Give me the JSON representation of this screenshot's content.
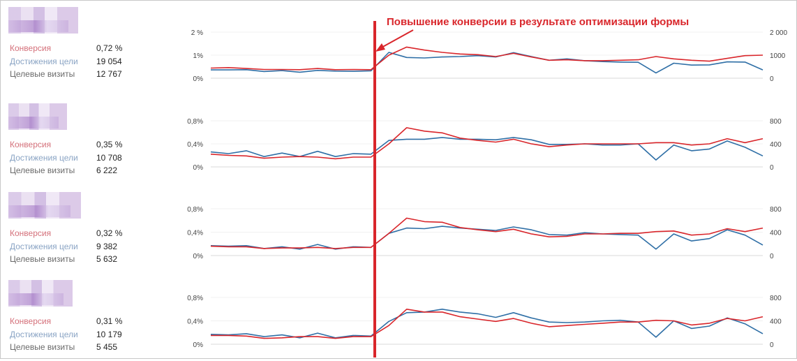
{
  "annotation": {
    "text": "Повышение конверсии в результате оптимизации формы",
    "color": "#d9262b"
  },
  "metric_labels": {
    "conversion": "Конверсия",
    "goals": "Достижения цели",
    "visits": "Целевые визиты"
  },
  "colors": {
    "conversion_line": "#d9262b",
    "goals_line": "#2f6fa6",
    "label_conversion": "#d4707a",
    "label_goals": "#8aa4c4",
    "label_visits": "#6a6a6a"
  },
  "panels": [
    {
      "conversion": "0,72 %",
      "goals": "19 054",
      "visits": "12 767"
    },
    {
      "conversion": "0,35 %",
      "goals": "10 708",
      "visits": "6 222"
    },
    {
      "conversion": "0,32 %",
      "goals": "9 382",
      "visits": "5 632"
    },
    {
      "conversion": "0,31 %",
      "goals": "10 179",
      "visits": "5 455"
    }
  ],
  "chart_data": [
    {
      "type": "line",
      "left_ticks": [
        "0%",
        "1%",
        "2 %"
      ],
      "right_ticks": [
        "0",
        "1000",
        "2 000"
      ],
      "ylim_left": [
        0,
        2
      ],
      "ylim_right": [
        0,
        2000
      ],
      "series": [
        {
          "values": [
            0.44,
            0.46,
            0.42,
            0.38,
            0.38,
            0.37,
            0.42,
            0.37,
            0.38,
            0.37,
            1.0,
            1.35,
            1.22,
            1.12,
            1.05,
            1.02,
            0.94,
            1.08,
            0.92,
            0.78,
            0.8,
            0.76,
            0.76,
            0.78,
            0.8,
            0.94,
            0.84,
            0.78,
            0.74,
            0.86,
            0.98,
            1.0
          ]
        },
        {
          "values": [
            360,
            360,
            370,
            290,
            330,
            260,
            340,
            310,
            300,
            320,
            1120,
            900,
            880,
            920,
            940,
            980,
            920,
            1110,
            940,
            780,
            840,
            760,
            720,
            700,
            690,
            230,
            650,
            570,
            580,
            710,
            700,
            360
          ]
        }
      ]
    },
    {
      "type": "line",
      "left_ticks": [
        "0%",
        "0,4%",
        "0,8%"
      ],
      "right_ticks": [
        "0",
        "400",
        "800"
      ],
      "ylim_left": [
        0,
        0.8
      ],
      "ylim_right": [
        0,
        800
      ],
      "series": [
        {
          "values": [
            0.22,
            0.2,
            0.19,
            0.15,
            0.17,
            0.18,
            0.17,
            0.14,
            0.17,
            0.17,
            0.4,
            0.68,
            0.62,
            0.59,
            0.5,
            0.46,
            0.43,
            0.48,
            0.4,
            0.35,
            0.38,
            0.4,
            0.4,
            0.4,
            0.4,
            0.42,
            0.42,
            0.38,
            0.4,
            0.49,
            0.42,
            0.49
          ]
        },
        {
          "values": [
            260,
            230,
            280,
            180,
            240,
            180,
            270,
            180,
            230,
            220,
            460,
            480,
            480,
            510,
            480,
            480,
            470,
            510,
            470,
            390,
            390,
            400,
            380,
            380,
            400,
            120,
            380,
            280,
            310,
            450,
            340,
            190
          ]
        }
      ]
    },
    {
      "type": "line",
      "left_ticks": [
        "0%",
        "0,4%",
        "0,8%"
      ],
      "right_ticks": [
        "0",
        "400",
        "800"
      ],
      "ylim_left": [
        0,
        0.8
      ],
      "ylim_right": [
        0,
        800
      ],
      "series": [
        {
          "values": [
            0.16,
            0.15,
            0.15,
            0.12,
            0.13,
            0.13,
            0.14,
            0.12,
            0.14,
            0.14,
            0.38,
            0.64,
            0.58,
            0.57,
            0.48,
            0.44,
            0.41,
            0.45,
            0.37,
            0.32,
            0.33,
            0.37,
            0.37,
            0.38,
            0.38,
            0.41,
            0.42,
            0.35,
            0.37,
            0.46,
            0.41,
            0.47
          ]
        },
        {
          "values": [
            170,
            160,
            170,
            120,
            150,
            110,
            190,
            110,
            150,
            140,
            380,
            470,
            460,
            500,
            470,
            450,
            430,
            490,
            440,
            360,
            350,
            390,
            370,
            360,
            350,
            110,
            370,
            250,
            290,
            440,
            350,
            180
          ]
        }
      ]
    },
    {
      "type": "line",
      "left_ticks": [
        "0%",
        "0,4%",
        "0,8%"
      ],
      "right_ticks": [
        "0",
        "400",
        "800"
      ],
      "ylim_left": [
        0,
        0.8
      ],
      "ylim_right": [
        0,
        800
      ],
      "series": [
        {
          "values": [
            0.15,
            0.15,
            0.14,
            0.1,
            0.11,
            0.13,
            0.13,
            0.1,
            0.13,
            0.13,
            0.32,
            0.6,
            0.55,
            0.55,
            0.47,
            0.43,
            0.39,
            0.44,
            0.36,
            0.3,
            0.32,
            0.34,
            0.36,
            0.38,
            0.38,
            0.41,
            0.4,
            0.33,
            0.36,
            0.44,
            0.4,
            0.47
          ]
        },
        {
          "values": [
            170,
            160,
            180,
            130,
            160,
            110,
            190,
            110,
            150,
            140,
            390,
            540,
            550,
            600,
            550,
            520,
            460,
            540,
            450,
            380,
            370,
            380,
            400,
            410,
            380,
            120,
            400,
            270,
            310,
            450,
            350,
            180
          ]
        }
      ]
    }
  ]
}
